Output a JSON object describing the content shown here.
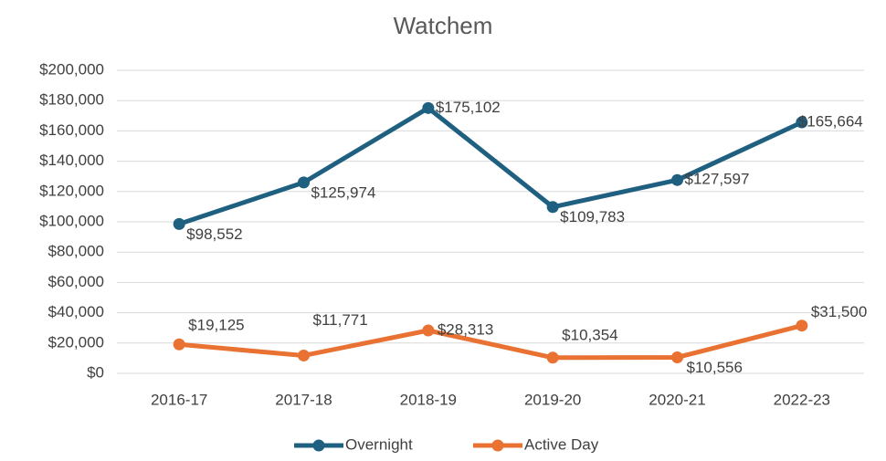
{
  "chart_data": {
    "type": "line",
    "title": "Watchem",
    "categories": [
      "2016-17",
      "2017-18",
      "2018-19",
      "2019-20",
      "2020-21",
      "2022-23"
    ],
    "series": [
      {
        "name": "Overnight",
        "color": "#1f5f80",
        "values": [
          98552,
          125974,
          175102,
          109783,
          127597,
          165664
        ],
        "value_labels": [
          "$98,552",
          "$125,974",
          "$175,102",
          "$109,783",
          "$127,597",
          "$165,664"
        ]
      },
      {
        "name": "Active Day",
        "color": "#e97132",
        "values": [
          19125,
          11771,
          28313,
          10354,
          10556,
          31500
        ],
        "value_labels": [
          "$19,125",
          "$11,771",
          "$28,313",
          "$10,354",
          "$10,556",
          "$31,500"
        ]
      }
    ],
    "ylim": [
      0,
      200000
    ],
    "yticks": [
      {
        "value": 0,
        "label": "$0"
      },
      {
        "value": 20000,
        "label": "$20,000"
      },
      {
        "value": 40000,
        "label": "$40,000"
      },
      {
        "value": 60000,
        "label": "$60,000"
      },
      {
        "value": 80000,
        "label": "$80,000"
      },
      {
        "value": 100000,
        "label": "$100,000"
      },
      {
        "value": 120000,
        "label": "$120,000"
      },
      {
        "value": 140000,
        "label": "$140,000"
      },
      {
        "value": 160000,
        "label": "$160,000"
      },
      {
        "value": 180000,
        "label": "$180,000"
      },
      {
        "value": 200000,
        "label": "$200,000"
      }
    ],
    "grid": true,
    "legend": "bottom"
  }
}
